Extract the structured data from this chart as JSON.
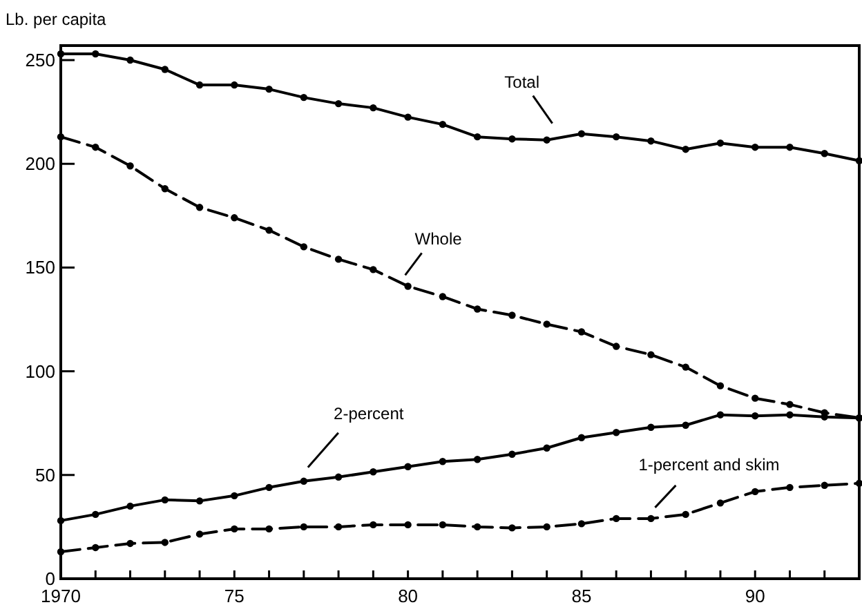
{
  "chart_data": {
    "type": "line",
    "ylabel": "Lb. per capita",
    "x": [
      1970,
      1971,
      1972,
      1973,
      1974,
      1975,
      1976,
      1977,
      1978,
      1979,
      1980,
      1981,
      1982,
      1983,
      1984,
      1985,
      1986,
      1987,
      1988,
      1989,
      1990,
      1991,
      1992,
      1993
    ],
    "xlim": [
      1970,
      1993
    ],
    "xticks": [
      1970,
      {
        "value": 1971,
        "label": null
      },
      {
        "value": 1972,
        "label": null
      },
      {
        "value": 1973,
        "label": null
      },
      {
        "value": 1974,
        "label": null
      },
      {
        "value": 1975,
        "label": "75"
      },
      {
        "value": 1976,
        "label": null
      },
      {
        "value": 1977,
        "label": null
      },
      {
        "value": 1978,
        "label": null
      },
      {
        "value": 1979,
        "label": null
      },
      {
        "value": 1980,
        "label": "80"
      },
      {
        "value": 1981,
        "label": null
      },
      {
        "value": 1982,
        "label": null
      },
      {
        "value": 1983,
        "label": null
      },
      {
        "value": 1984,
        "label": null
      },
      {
        "value": 1985,
        "label": "85"
      },
      {
        "value": 1986,
        "label": null
      },
      {
        "value": 1987,
        "label": null
      },
      {
        "value": 1988,
        "label": null
      },
      {
        "value": 1989,
        "label": null
      },
      {
        "value": 1990,
        "label": "90"
      },
      {
        "value": 1991,
        "label": null
      },
      {
        "value": 1992,
        "label": null
      }
    ],
    "ylim": [
      0,
      257
    ],
    "yticks": [
      0,
      50,
      100,
      150,
      200,
      250
    ],
    "grid": false,
    "marker": "circle",
    "series": [
      {
        "name": "Total",
        "color": "#000000",
        "line_style": "solid",
        "values": [
          253,
          253,
          250,
          245.5,
          238,
          238,
          236,
          232,
          229,
          227,
          222.5,
          219,
          213,
          212,
          211.5,
          214.5,
          213,
          211,
          207,
          210,
          208,
          208,
          205,
          201.5
        ]
      },
      {
        "name": "Whole",
        "color": "#000000",
        "line_style": "dashed",
        "values": [
          213,
          208,
          199,
          188,
          179,
          174,
          168,
          160,
          154,
          149,
          141,
          136,
          130,
          127,
          122.7,
          119,
          112,
          108,
          102,
          93,
          87,
          84,
          80,
          77.5
        ]
      },
      {
        "name": "2-percent",
        "color": "#000000",
        "line_style": "solid",
        "values": [
          28,
          31,
          35,
          38,
          37.5,
          40,
          44,
          47,
          49,
          51.5,
          54,
          56.5,
          57.5,
          60,
          63,
          68,
          70.5,
          73,
          74,
          79,
          78.5,
          79,
          78,
          77.5
        ]
      },
      {
        "name": "1-percent and skim",
        "color": "#000000",
        "line_style": "dashed",
        "values": [
          13,
          15,
          17,
          17.5,
          21.5,
          24,
          24,
          25,
          25,
          26,
          26,
          26,
          25,
          24.5,
          25,
          26.5,
          29,
          29,
          31,
          36.5,
          42,
          44,
          45,
          46
        ]
      }
    ]
  }
}
